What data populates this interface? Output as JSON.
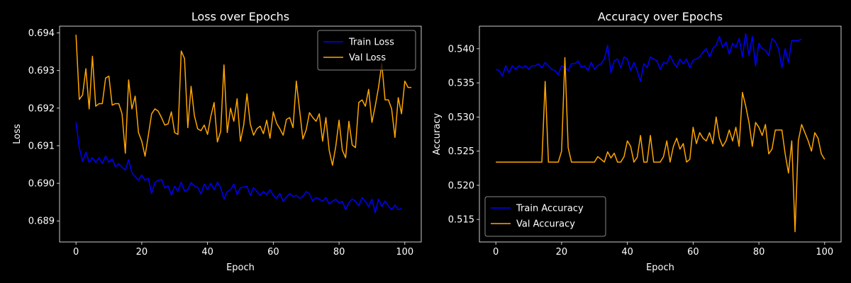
{
  "chart_data": [
    {
      "type": "line",
      "title": "Loss over Epochs",
      "xlabel": "Epoch",
      "ylabel": "Loss",
      "xlim": [
        -5,
        105
      ],
      "ylim": [
        0.68844,
        0.69418
      ],
      "xticks": [
        0,
        20,
        40,
        60,
        80,
        100
      ],
      "xtick_labels": [
        "0",
        "20",
        "40",
        "60",
        "80",
        "100"
      ],
      "yticks": [
        0.689,
        0.69,
        0.691,
        0.692,
        0.693,
        0.694
      ],
      "ytick_labels": [
        "0.689",
        "0.690",
        "0.691",
        "0.692",
        "0.693",
        "0.694"
      ],
      "grid": false,
      "legend": "upper right",
      "series": [
        {
          "name": "Train Loss",
          "color": "#0000ff",
          "values": [
            0.69162,
            0.69095,
            0.69058,
            0.69083,
            0.69056,
            0.69068,
            0.69055,
            0.69068,
            0.69053,
            0.69072,
            0.69056,
            0.69065,
            0.69044,
            0.69052,
            0.69043,
            0.69035,
            0.69063,
            0.69028,
            0.69018,
            0.69008,
            0.69022,
            0.69008,
            0.69013,
            0.68973,
            0.69002,
            0.69008,
            0.6901,
            0.68988,
            0.68993,
            0.68969,
            0.68992,
            0.68979,
            0.69003,
            0.68979,
            0.68983,
            0.69002,
            0.68993,
            0.68989,
            0.68972,
            0.68998,
            0.68983,
            0.69,
            0.68983,
            0.69003,
            0.68988,
            0.68958,
            0.68978,
            0.68983,
            0.68998,
            0.6897,
            0.68988,
            0.6899,
            0.68992,
            0.68968,
            0.68988,
            0.68978,
            0.68968,
            0.68978,
            0.6897,
            0.68983,
            0.68968,
            0.6896,
            0.68973,
            0.68952,
            0.68963,
            0.68973,
            0.68965,
            0.68968,
            0.6896,
            0.68965,
            0.68978,
            0.68972,
            0.68953,
            0.68962,
            0.68958,
            0.68952,
            0.68962,
            0.68945,
            0.68952,
            0.68958,
            0.68948,
            0.68952,
            0.6893,
            0.68948,
            0.68958,
            0.68952,
            0.6894,
            0.68962,
            0.68952,
            0.68938,
            0.68958,
            0.68922,
            0.68958,
            0.68938,
            0.68953,
            0.6894,
            0.6893,
            0.68942,
            0.6893,
            0.68933
          ]
        },
        {
          "name": "Val Loss",
          "color": "#ffa500",
          "values": [
            0.69395,
            0.69223,
            0.69235,
            0.69305,
            0.69198,
            0.69338,
            0.69205,
            0.69212,
            0.69212,
            0.6928,
            0.69285,
            0.69208,
            0.69212,
            0.69212,
            0.69185,
            0.6908,
            0.69275,
            0.69198,
            0.69232,
            0.69135,
            0.69112,
            0.69072,
            0.69128,
            0.69185,
            0.69198,
            0.69192,
            0.69175,
            0.69155,
            0.69158,
            0.6919,
            0.69135,
            0.6913,
            0.69352,
            0.69332,
            0.69148,
            0.69258,
            0.6918,
            0.69145,
            0.6914,
            0.69155,
            0.6913,
            0.69178,
            0.69215,
            0.6911,
            0.69138,
            0.69315,
            0.69135,
            0.692,
            0.69165,
            0.69225,
            0.69112,
            0.69155,
            0.69238,
            0.69158,
            0.69128,
            0.69145,
            0.69152,
            0.69132,
            0.69168,
            0.6912,
            0.6919,
            0.6916,
            0.69145,
            0.69128,
            0.6917,
            0.69175,
            0.69148,
            0.69272,
            0.69195,
            0.69118,
            0.69142,
            0.69188,
            0.69175,
            0.69165,
            0.69185,
            0.69112,
            0.69175,
            0.69088,
            0.69048,
            0.69098,
            0.69168,
            0.69088,
            0.69068,
            0.69165,
            0.69102,
            0.69095,
            0.69215,
            0.69222,
            0.69205,
            0.6925,
            0.69162,
            0.69205,
            0.69255,
            0.69318,
            0.69222,
            0.69222,
            0.69198,
            0.69122,
            0.69228,
            0.69185,
            0.69272,
            0.69255,
            0.69255
          ]
        }
      ]
    },
    {
      "type": "line",
      "title": "Accuracy over Epochs",
      "xlabel": "Epoch",
      "ylabel": "Accuracy",
      "xlim": [
        -5,
        105
      ],
      "ylim": [
        0.5117,
        0.5433
      ],
      "xticks": [
        0,
        20,
        40,
        60,
        80,
        100
      ],
      "xtick_labels": [
        "0",
        "20",
        "40",
        "60",
        "80",
        "100"
      ],
      "yticks": [
        0.515,
        0.52,
        0.525,
        0.53,
        0.535,
        0.54
      ],
      "ytick_labels": [
        "0.515",
        "0.520",
        "0.525",
        "0.530",
        "0.535",
        "0.540"
      ],
      "grid": false,
      "legend": "lower left",
      "series": [
        {
          "name": "Train Accuracy",
          "color": "#0000ff",
          "values": [
            0.537,
            0.5368,
            0.536,
            0.5375,
            0.5365,
            0.5375,
            0.537,
            0.5375,
            0.5372,
            0.5375,
            0.537,
            0.5375,
            0.5375,
            0.5378,
            0.5372,
            0.538,
            0.5375,
            0.537,
            0.5368,
            0.5362,
            0.5375,
            0.5372,
            0.5368,
            0.5378,
            0.5378,
            0.5382,
            0.5373,
            0.5375,
            0.5368,
            0.538,
            0.537,
            0.5375,
            0.5378,
            0.5385,
            0.5405,
            0.5365,
            0.5382,
            0.5385,
            0.5372,
            0.5388,
            0.5385,
            0.5368,
            0.538,
            0.5368,
            0.5352,
            0.5378,
            0.5372,
            0.5388,
            0.5385,
            0.5382,
            0.537,
            0.538,
            0.5378,
            0.539,
            0.538,
            0.5373,
            0.5385,
            0.5378,
            0.5385,
            0.5372,
            0.5383,
            0.5385,
            0.5388,
            0.5395,
            0.54,
            0.5388,
            0.54,
            0.5405,
            0.5418,
            0.5402,
            0.541,
            0.5392,
            0.5408,
            0.5402,
            0.5415,
            0.5388,
            0.5422,
            0.539,
            0.5418,
            0.5375,
            0.5408,
            0.54,
            0.5398,
            0.539,
            0.5415,
            0.541,
            0.54,
            0.5372,
            0.54,
            0.538,
            0.5412,
            0.5412,
            0.5412,
            0.5414
          ]
        },
        {
          "name": "Val Accuracy",
          "color": "#ffa500",
          "values": [
            0.5234,
            0.5234,
            0.5234,
            0.5234,
            0.5234,
            0.5234,
            0.5234,
            0.5234,
            0.5234,
            0.5234,
            0.5234,
            0.5234,
            0.5234,
            0.5234,
            0.5234,
            0.5352,
            0.5234,
            0.5234,
            0.5234,
            0.5234,
            0.525,
            0.5387,
            0.5255,
            0.5234,
            0.5234,
            0.5234,
            0.5234,
            0.5234,
            0.5234,
            0.5234,
            0.5234,
            0.5242,
            0.5238,
            0.5234,
            0.5249,
            0.524,
            0.5247,
            0.5234,
            0.5234,
            0.5242,
            0.5265,
            0.5257,
            0.5234,
            0.5241,
            0.5273,
            0.5234,
            0.5234,
            0.5273,
            0.5234,
            0.5234,
            0.5234,
            0.5242,
            0.5265,
            0.5234,
            0.5257,
            0.5269,
            0.5253,
            0.5261,
            0.5234,
            0.5238,
            0.5285,
            0.5261,
            0.5277,
            0.5269,
            0.5265,
            0.5277,
            0.5261,
            0.53,
            0.5269,
            0.5257,
            0.5265,
            0.5281,
            0.5265,
            0.5285,
            0.5257,
            0.5336,
            0.5316,
            0.5292,
            0.5257,
            0.5292,
            0.5285,
            0.5273,
            0.5289,
            0.5246,
            0.5253,
            0.5281,
            0.5281,
            0.5281,
            0.5246,
            0.5218,
            0.5265,
            0.5132,
            0.5265,
            0.5289,
            0.5277,
            0.5265,
            0.525,
            0.5277,
            0.5269,
            0.5246,
            0.5238
          ]
        }
      ]
    }
  ]
}
